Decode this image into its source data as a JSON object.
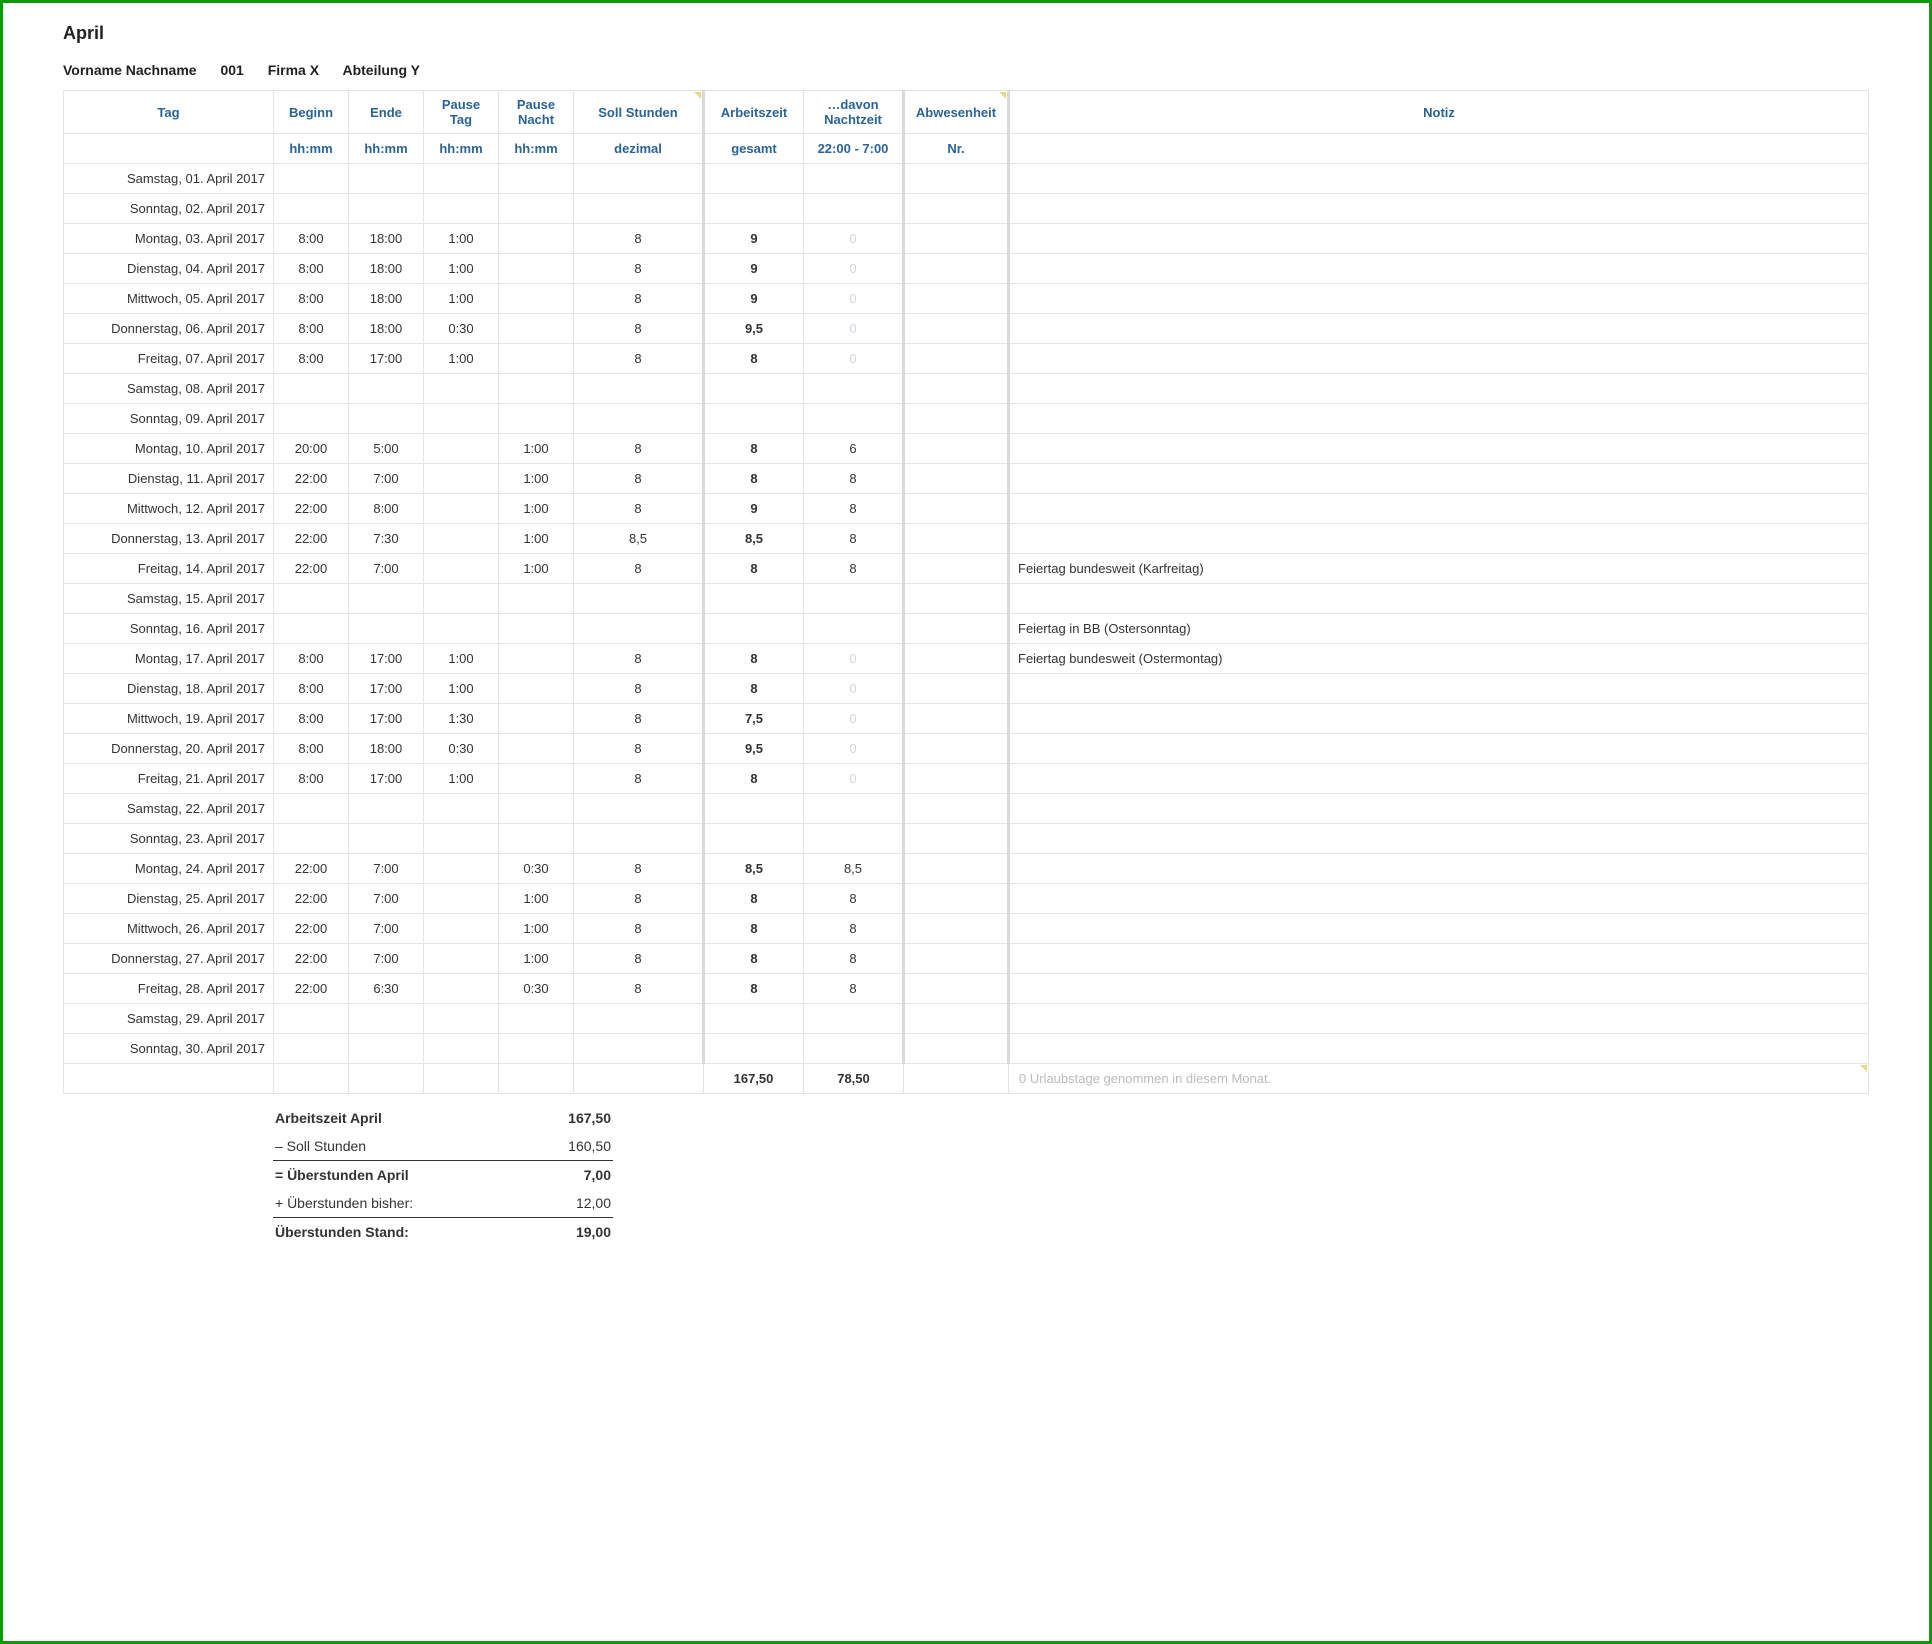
{
  "title": "April",
  "meta": {
    "name": "Vorname Nachname",
    "id": "001",
    "company": "Firma X",
    "dept": "Abteilung Y"
  },
  "columns": {
    "tag": "Tag",
    "beginn": "Beginn",
    "ende": "Ende",
    "ptag": "Pause Tag",
    "pnacht": "Pause Nacht",
    "soll": "Soll Stunden",
    "work": "Arbeitszeit",
    "nacht": "…davon Nachtzeit",
    "abw": "Abwesenheit",
    "notiz": "Notiz"
  },
  "sub": {
    "beginn": "hh:mm",
    "ende": "hh:mm",
    "ptag": "hh:mm",
    "pnacht": "hh:mm",
    "soll": "dezimal",
    "work": "gesamt",
    "nacht": "22:00 - 7:00",
    "abw": "Nr."
  },
  "rows": [
    {
      "day": "Samstag, 01. April 2017"
    },
    {
      "day": "Sonntag, 02. April 2017"
    },
    {
      "day": "Montag, 03. April 2017",
      "beginn": "8:00",
      "ende": "18:00",
      "ptag": "1:00",
      "soll": "8",
      "work": "9",
      "nacht": "0",
      "faint": true
    },
    {
      "day": "Dienstag, 04. April 2017",
      "beginn": "8:00",
      "ende": "18:00",
      "ptag": "1:00",
      "soll": "8",
      "work": "9",
      "nacht": "0",
      "faint": true
    },
    {
      "day": "Mittwoch, 05. April 2017",
      "beginn": "8:00",
      "ende": "18:00",
      "ptag": "1:00",
      "soll": "8",
      "work": "9",
      "nacht": "0",
      "faint": true
    },
    {
      "day": "Donnerstag, 06. April 2017",
      "beginn": "8:00",
      "ende": "18:00",
      "ptag": "0:30",
      "soll": "8",
      "work": "9,5",
      "nacht": "0",
      "faint": true
    },
    {
      "day": "Freitag, 07. April 2017",
      "beginn": "8:00",
      "ende": "17:00",
      "ptag": "1:00",
      "soll": "8",
      "work": "8",
      "nacht": "0",
      "faint": true
    },
    {
      "day": "Samstag, 08. April 2017"
    },
    {
      "day": "Sonntag, 09. April 2017"
    },
    {
      "day": "Montag, 10. April 2017",
      "beginn": "20:00",
      "ende": "5:00",
      "pnacht": "1:00",
      "soll": "8",
      "work": "8",
      "nacht": "6"
    },
    {
      "day": "Dienstag, 11. April 2017",
      "beginn": "22:00",
      "ende": "7:00",
      "pnacht": "1:00",
      "soll": "8",
      "work": "8",
      "nacht": "8"
    },
    {
      "day": "Mittwoch, 12. April 2017",
      "beginn": "22:00",
      "ende": "8:00",
      "pnacht": "1:00",
      "soll": "8",
      "work": "9",
      "nacht": "8"
    },
    {
      "day": "Donnerstag, 13. April 2017",
      "beginn": "22:00",
      "ende": "7:30",
      "pnacht": "1:00",
      "soll": "8,5",
      "work": "8,5",
      "nacht": "8"
    },
    {
      "day": "Freitag, 14. April 2017",
      "beginn": "22:00",
      "ende": "7:00",
      "pnacht": "1:00",
      "soll": "8",
      "work": "8",
      "nacht": "8",
      "notiz": "Feiertag bundesweit (Karfreitag)"
    },
    {
      "day": "Samstag, 15. April 2017"
    },
    {
      "day": "Sonntag, 16. April 2017",
      "notiz": "Feiertag in BB (Ostersonntag)"
    },
    {
      "day": "Montag, 17. April 2017",
      "beginn": "8:00",
      "ende": "17:00",
      "ptag": "1:00",
      "soll": "8",
      "work": "8",
      "nacht": "0",
      "faint": true,
      "notiz": "Feiertag bundesweit (Ostermontag)"
    },
    {
      "day": "Dienstag, 18. April 2017",
      "beginn": "8:00",
      "ende": "17:00",
      "ptag": "1:00",
      "soll": "8",
      "work": "8",
      "nacht": "0",
      "faint": true
    },
    {
      "day": "Mittwoch, 19. April 2017",
      "beginn": "8:00",
      "ende": "17:00",
      "ptag": "1:30",
      "soll": "8",
      "work": "7,5",
      "nacht": "0",
      "faint": true
    },
    {
      "day": "Donnerstag, 20. April 2017",
      "beginn": "8:00",
      "ende": "18:00",
      "ptag": "0:30",
      "soll": "8",
      "work": "9,5",
      "nacht": "0",
      "faint": true
    },
    {
      "day": "Freitag, 21. April 2017",
      "beginn": "8:00",
      "ende": "17:00",
      "ptag": "1:00",
      "soll": "8",
      "work": "8",
      "nacht": "0",
      "faint": true
    },
    {
      "day": "Samstag, 22. April 2017"
    },
    {
      "day": "Sonntag, 23. April 2017"
    },
    {
      "day": "Montag, 24. April 2017",
      "beginn": "22:00",
      "ende": "7:00",
      "pnacht": "0:30",
      "soll": "8",
      "work": "8,5",
      "nacht": "8,5"
    },
    {
      "day": "Dienstag, 25. April 2017",
      "beginn": "22:00",
      "ende": "7:00",
      "pnacht": "1:00",
      "soll": "8",
      "work": "8",
      "nacht": "8"
    },
    {
      "day": "Mittwoch, 26. April 2017",
      "beginn": "22:00",
      "ende": "7:00",
      "pnacht": "1:00",
      "soll": "8",
      "work": "8",
      "nacht": "8"
    },
    {
      "day": "Donnerstag, 27. April 2017",
      "beginn": "22:00",
      "ende": "7:00",
      "pnacht": "1:00",
      "soll": "8",
      "work": "8",
      "nacht": "8"
    },
    {
      "day": "Freitag, 28. April 2017",
      "beginn": "22:00",
      "ende": "6:30",
      "pnacht": "0:30",
      "soll": "8",
      "work": "8",
      "nacht": "8"
    },
    {
      "day": "Samstag, 29. April 2017"
    },
    {
      "day": "Sonntag, 30. April 2017"
    }
  ],
  "totals": {
    "work": "167,50",
    "nacht": "78,50",
    "notiz": "0 Urlaubstage genommen in diesem Monat."
  },
  "summary": {
    "l1": "Arbeitszeit April",
    "v1": "167,50",
    "l2": "– Soll Stunden",
    "v2": "160,50",
    "l3": "= Überstunden April",
    "v3": "7,00",
    "l4": "+ Überstunden bisher:",
    "v4": "12,00",
    "l5": "Überstunden Stand:",
    "v5": "19,00"
  }
}
